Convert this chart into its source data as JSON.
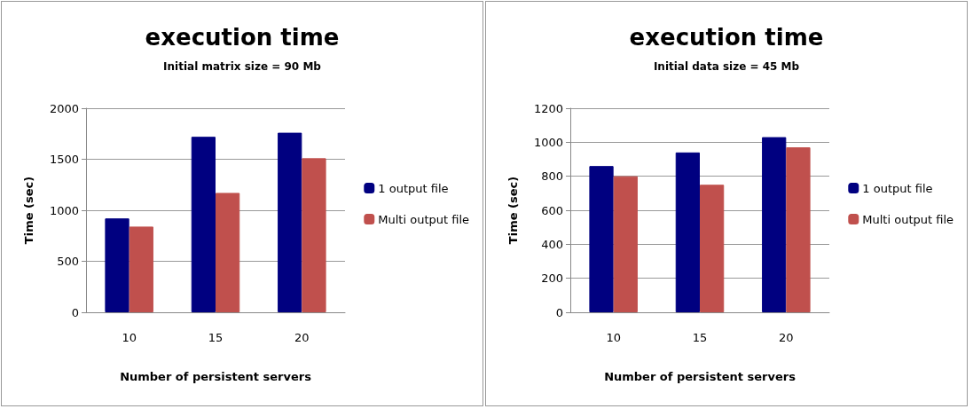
{
  "chart_data": [
    {
      "type": "bar",
      "title": "execution time",
      "subtitle": "Initial matrix size = 90 Mb",
      "xlabel": "Number of persistent servers",
      "ylabel": "Time (sec)",
      "categories": [
        "10",
        "15",
        "20"
      ],
      "series": [
        {
          "name": "1 output file",
          "color": "#000080",
          "values": [
            920,
            1720,
            1760
          ]
        },
        {
          "name": "Multi output file",
          "color": "#c0504d",
          "values": [
            840,
            1170,
            1510
          ]
        }
      ],
      "ylim": [
        0,
        2000
      ],
      "yticks": [
        0,
        500,
        1000,
        1500,
        2000
      ],
      "grid": "y",
      "legend": "right"
    },
    {
      "type": "bar",
      "title": "execution time",
      "subtitle": "Initial data size = 45 Mb",
      "xlabel": "Number of persistent servers",
      "ylabel": "Time (sec)",
      "categories": [
        "10",
        "15",
        "20"
      ],
      "series": [
        {
          "name": "1 output file",
          "color": "#000080",
          "values": [
            860,
            940,
            1030
          ]
        },
        {
          "name": "Multi output file",
          "color": "#c0504d",
          "values": [
            800,
            750,
            970
          ]
        }
      ],
      "ylim": [
        0,
        1200
      ],
      "yticks": [
        0,
        200,
        400,
        600,
        800,
        1000,
        1200
      ],
      "grid": "y",
      "legend": "right"
    }
  ]
}
